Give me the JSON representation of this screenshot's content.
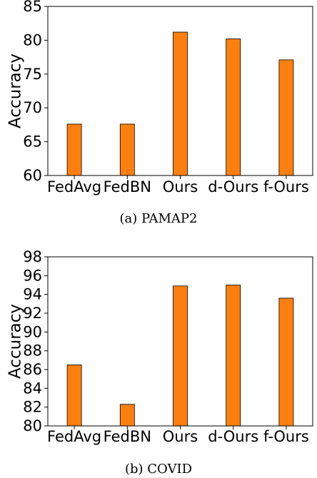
{
  "chart_data": [
    {
      "type": "bar",
      "categories": [
        "FedAvg",
        "FedBN",
        "Ours",
        "d-Ours",
        "f-Ours"
      ],
      "values": [
        67.6,
        67.6,
        81.2,
        80.2,
        77.1
      ],
      "ylabel": "Accuracy",
      "ylim": [
        60,
        85
      ],
      "yticks": [
        60,
        65,
        70,
        75,
        80,
        85
      ],
      "caption": "(a)  PAMAP2",
      "bar_color": "#ff7f0e",
      "bar_edge_color": "#000000",
      "grid": false
    },
    {
      "type": "bar",
      "categories": [
        "FedAvg",
        "FedBN",
        "Ours",
        "d-Ours",
        "f-Ours"
      ],
      "values": [
        86.5,
        82.3,
        94.9,
        95.0,
        93.6
      ],
      "ylabel": "Accuracy",
      "ylim": [
        80,
        98
      ],
      "yticks": [
        80,
        82,
        84,
        86,
        88,
        90,
        92,
        94,
        96,
        98
      ],
      "caption": "(b)  COVID",
      "bar_color": "#ff7f0e",
      "bar_edge_color": "#000000",
      "grid": false
    }
  ]
}
